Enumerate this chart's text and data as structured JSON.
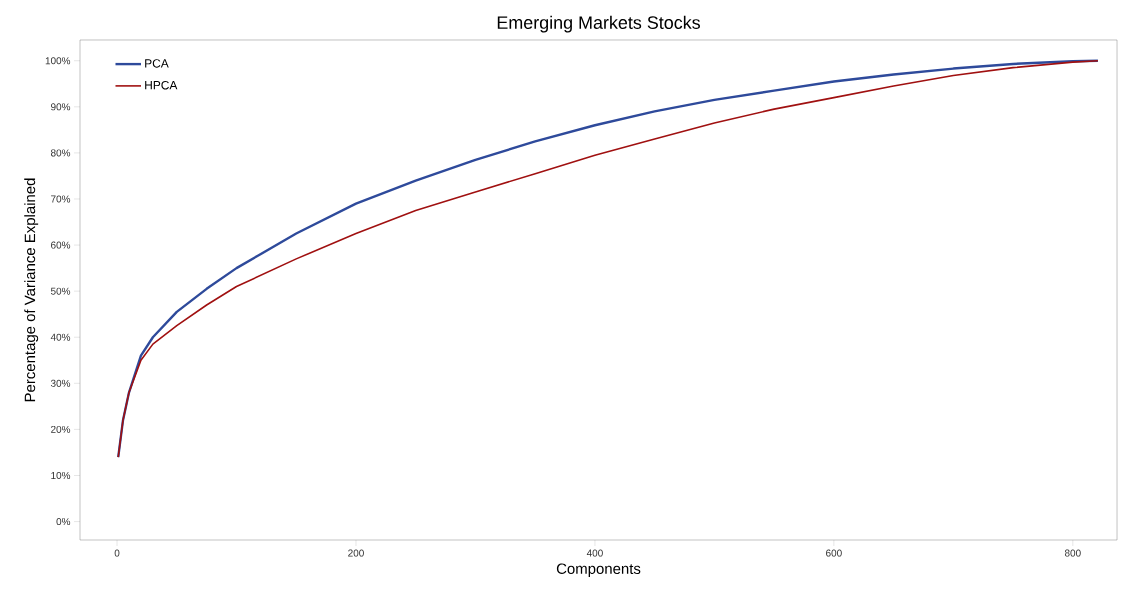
{
  "chart_data": {
    "type": "line",
    "title": "Emerging Markets Stocks",
    "xlabel": "Components",
    "ylabel": "Percentage of Variance Explained",
    "xlim": [
      -31,
      837
    ],
    "ylim": [
      -4,
      104.5
    ],
    "xticks": [
      0,
      200,
      400,
      600,
      800
    ],
    "yticks": [
      {
        "value": 0,
        "label": "0%"
      },
      {
        "value": 10,
        "label": "10%"
      },
      {
        "value": 20,
        "label": "20%"
      },
      {
        "value": 30,
        "label": "30%"
      },
      {
        "value": 40,
        "label": "40%"
      },
      {
        "value": 50,
        "label": "50%"
      },
      {
        "value": 60,
        "label": "60%"
      },
      {
        "value": 70,
        "label": "70%"
      },
      {
        "value": 80,
        "label": "80%"
      },
      {
        "value": 90,
        "label": "90%"
      },
      {
        "value": 100,
        "label": "100%"
      }
    ],
    "x": [
      1,
      5,
      10,
      20,
      30,
      50,
      75,
      100,
      150,
      200,
      250,
      300,
      350,
      400,
      450,
      500,
      550,
      600,
      650,
      700,
      750,
      800,
      821
    ],
    "series": [
      {
        "name": "PCA",
        "color": "#2e4a9b",
        "values": [
          14,
          22,
          28,
          36,
          40,
          45.5,
          50.5,
          55,
          62.5,
          69,
          74,
          78.5,
          82.5,
          86,
          89,
          91.5,
          93.5,
          95.5,
          97,
          98.3,
          99.3,
          99.9,
          100
        ]
      },
      {
        "name": "HPCA",
        "color": "#a01010",
        "values": [
          14,
          22,
          28,
          35,
          38.5,
          42.5,
          47,
          51,
          57,
          62.5,
          67.5,
          71.5,
          75.5,
          79.5,
          83,
          86.5,
          89.5,
          92,
          94.5,
          96.8,
          98.5,
          99.7,
          100
        ]
      }
    ],
    "legend": "top left",
    "grid": false,
    "marker": "none",
    "line_style": "solid"
  }
}
